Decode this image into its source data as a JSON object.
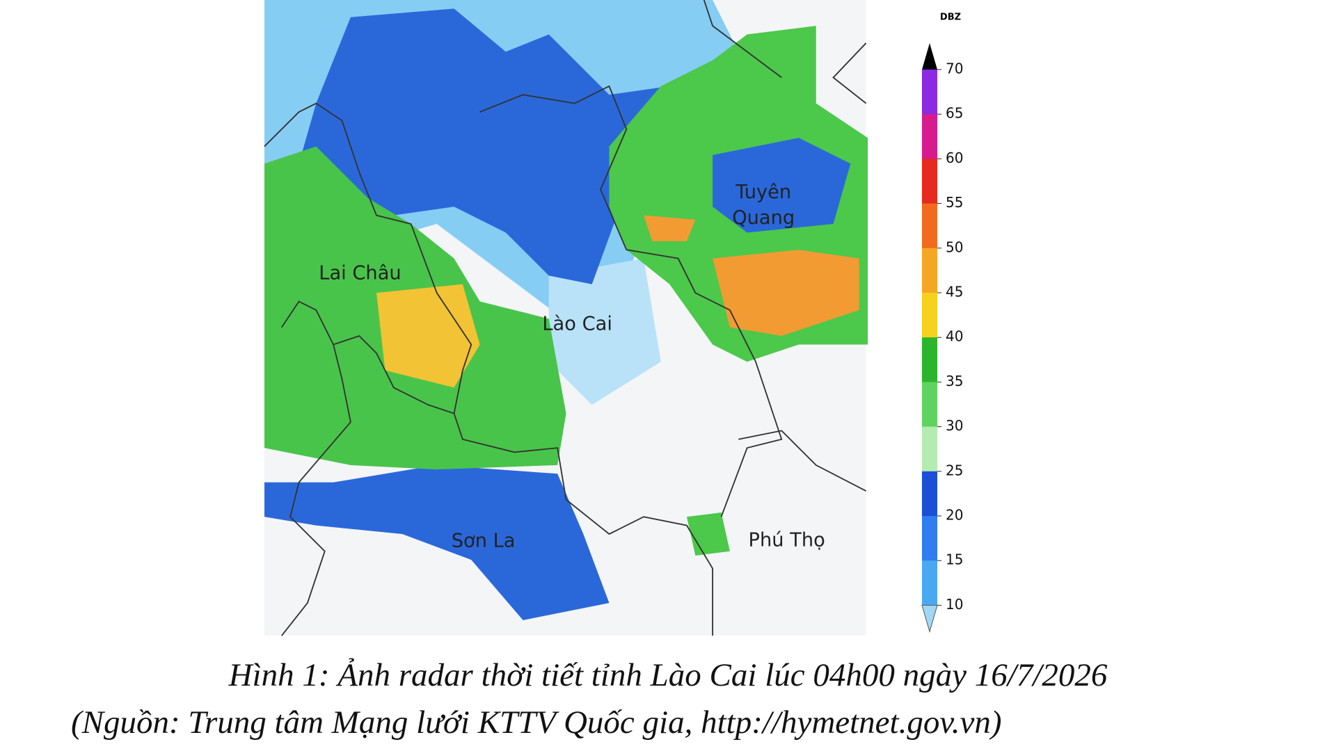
{
  "figure": {
    "map_labels": [
      "Lai Châu",
      "Lào Cai",
      "Sơn La",
      "Phú Thọ"
    ],
    "tuyen_quang_label": [
      "Tuyên",
      "Quang"
    ],
    "colorbar": {
      "unit": "DBZ",
      "ticks": [
        "70",
        "65",
        "60",
        "55",
        "50",
        "45",
        "40",
        "35",
        "30",
        "25",
        "20",
        "15",
        "10"
      ]
    },
    "caption": {
      "line1": "Hình 1: Ảnh radar thời tiết tỉnh Lào Cai lúc 04h00 ngày 16/7/2026",
      "line2": "(Nguồn: Trung tâm Mạng lưới KTTV Quốc gia, http://hymetnet.gov.vn)"
    }
  }
}
